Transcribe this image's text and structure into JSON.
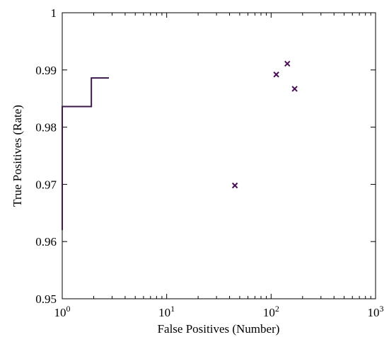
{
  "chart_data": {
    "type": "line",
    "title": "",
    "xlabel": "False Positives (Number)",
    "ylabel": "True Positives (Rate)",
    "xscale": "log",
    "xlim": [
      1,
      1000
    ],
    "ylim": [
      0.95,
      1
    ],
    "grid": false,
    "legend": "none",
    "x_ticks": [
      {
        "value": 1,
        "base": "10",
        "exp": "0"
      },
      {
        "value": 10,
        "base": "10",
        "exp": "1"
      },
      {
        "value": 100,
        "base": "10",
        "exp": "2"
      },
      {
        "value": 1000,
        "base": "10",
        "exp": "3"
      }
    ],
    "y_ticks": [
      {
        "value": 0.95,
        "label": "0.95"
      },
      {
        "value": 0.96,
        "label": "0.96"
      },
      {
        "value": 0.97,
        "label": "0.97"
      },
      {
        "value": 0.98,
        "label": "0.98"
      },
      {
        "value": 0.99,
        "label": "0.99"
      },
      {
        "value": 1,
        "label": "1"
      }
    ],
    "series": [
      {
        "kind": "step-line",
        "color": "#3d1a4b",
        "points": [
          {
            "x": 1,
            "y": 0.962
          },
          {
            "x": 1,
            "y": 0.9836
          },
          {
            "x": 1.9,
            "y": 0.9836
          },
          {
            "x": 1.9,
            "y": 0.9886
          },
          {
            "x": 2.8,
            "y": 0.9886
          }
        ]
      },
      {
        "kind": "scatter",
        "marker": "x",
        "color": "#4b1058",
        "points": [
          {
            "x": 45,
            "y": 0.9698
          },
          {
            "x": 112,
            "y": 0.9892
          },
          {
            "x": 143,
            "y": 0.9911
          },
          {
            "x": 168,
            "y": 0.9867
          }
        ]
      }
    ]
  }
}
